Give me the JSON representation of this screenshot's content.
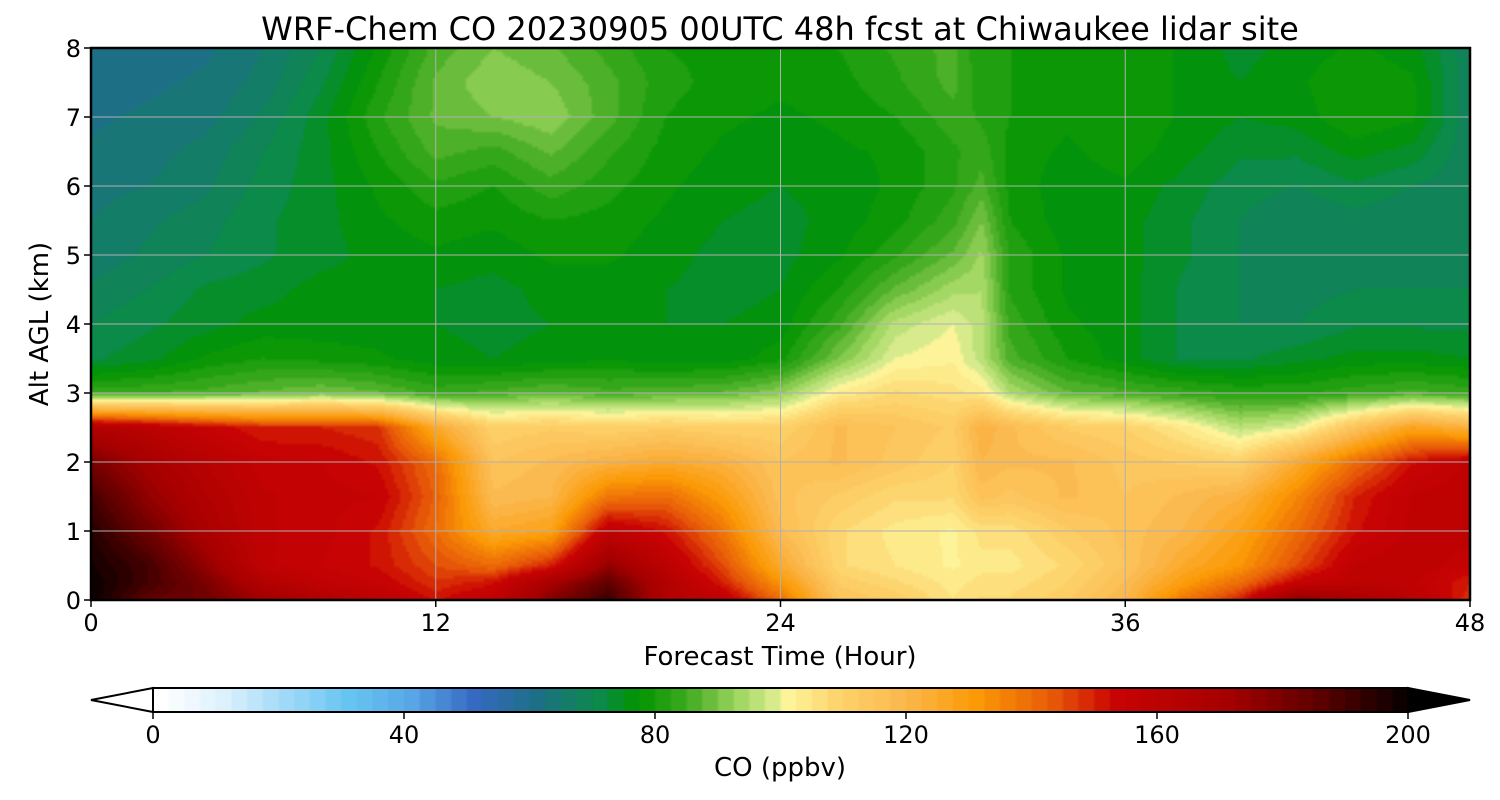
{
  "chart_data": {
    "type": "heatmap",
    "title": "WRF-Chem CO  20230905 00UTC 48h fcst at Chiwaukee lidar site",
    "xlabel": "Forecast Time (Hour)",
    "ylabel": "Alt AGL (km)",
    "xlim": [
      0,
      48
    ],
    "ylim": [
      0,
      8
    ],
    "xticks": [
      "0",
      "12",
      "24",
      "36",
      "48"
    ],
    "yticks": [
      "0",
      "1",
      "2",
      "3",
      "4",
      "5",
      "6",
      "7",
      "8"
    ],
    "grid": true,
    "x_hours": [
      0,
      2,
      4,
      6,
      8,
      10,
      12,
      14,
      16,
      18,
      20,
      22,
      24,
      26,
      28,
      30,
      31,
      32,
      34,
      36,
      38,
      40,
      42,
      44,
      46,
      48
    ],
    "y_km": [
      0,
      0.25,
      0.5,
      1,
      1.5,
      2,
      2.5,
      3,
      3.5,
      4,
      4.5,
      5,
      5.5,
      6,
      6.5,
      7,
      7.5,
      8
    ],
    "values_ppbv": [
      [
        200,
        185,
        182,
        172,
        165,
        160,
        152,
        158,
        178,
        192,
        165,
        158,
        140,
        115,
        112,
        105,
        108,
        108,
        112,
        120,
        138,
        150,
        178,
        168,
        162,
        148
      ],
      [
        200,
        190,
        180,
        165,
        158,
        155,
        148,
        152,
        170,
        185,
        165,
        150,
        132,
        112,
        108,
        104,
        106,
        106,
        110,
        118,
        130,
        140,
        155,
        160,
        158,
        150
      ],
      [
        198,
        190,
        175,
        158,
        155,
        152,
        145,
        140,
        150,
        175,
        160,
        145,
        125,
        108,
        105,
        102,
        104,
        104,
        108,
        115,
        125,
        132,
        145,
        158,
        160,
        155
      ],
      [
        195,
        182,
        168,
        158,
        156,
        152,
        140,
        125,
        128,
        158,
        152,
        138,
        118,
        108,
        104,
        102,
        106,
        106,
        112,
        116,
        120,
        128,
        140,
        152,
        158,
        160
      ],
      [
        190,
        175,
        165,
        158,
        156,
        155,
        142,
        118,
        120,
        138,
        140,
        130,
        116,
        112,
        108,
        108,
        116,
        114,
        118,
        115,
        118,
        122,
        135,
        150,
        158,
        160
      ],
      [
        180,
        170,
        162,
        156,
        155,
        152,
        140,
        115,
        118,
        122,
        125,
        122,
        115,
        118,
        114,
        110,
        120,
        118,
        118,
        114,
        112,
        110,
        125,
        140,
        152,
        158
      ],
      [
        165,
        160,
        155,
        150,
        150,
        148,
        125,
        110,
        112,
        110,
        112,
        110,
        110,
        118,
        115,
        112,
        122,
        118,
        112,
        110,
        104,
        96,
        100,
        115,
        128,
        122
      ],
      [
        84,
        85,
        86,
        88,
        90,
        88,
        84,
        86,
        88,
        86,
        87,
        88,
        92,
        103,
        108,
        106,
        104,
        95,
        88,
        86,
        84,
        82,
        82,
        84,
        86,
        84
      ],
      [
        72,
        74,
        78,
        80,
        79,
        78,
        76,
        75,
        76,
        77,
        76,
        76,
        79,
        90,
        100,
        102,
        96,
        86,
        80,
        76,
        72,
        72,
        74,
        76,
        76,
        75
      ],
      [
        70,
        72,
        74,
        76,
        76,
        76,
        75,
        74,
        75,
        76,
        75,
        75,
        76,
        84,
        96,
        100,
        96,
        84,
        78,
        76,
        72,
        70,
        70,
        72,
        72,
        72
      ],
      [
        68,
        70,
        73,
        74,
        76,
        76,
        75,
        74,
        76,
        76,
        75,
        74,
        75,
        80,
        88,
        94,
        95,
        82,
        77,
        76,
        72,
        70,
        69,
        70,
        70,
        70
      ],
      [
        66,
        68,
        70,
        72,
        74,
        76,
        77,
        76,
        78,
        78,
        76,
        74,
        74,
        77,
        82,
        88,
        93,
        82,
        77,
        76,
        73,
        70,
        68,
        69,
        69,
        69
      ],
      [
        65,
        67,
        69,
        72,
        74,
        77,
        79,
        78,
        80,
        79,
        77,
        75,
        74,
        76,
        79,
        84,
        90,
        80,
        76,
        76,
        73,
        70,
        68,
        69,
        68,
        68
      ],
      [
        64,
        65,
        67,
        71,
        74,
        78,
        82,
        80,
        84,
        81,
        78,
        76,
        75,
        76,
        78,
        82,
        86,
        79,
        76,
        77,
        74,
        71,
        70,
        72,
        70,
        68
      ],
      [
        63,
        64,
        66,
        70,
        74,
        80,
        86,
        84,
        88,
        83,
        79,
        77,
        76,
        77,
        78,
        82,
        84,
        79,
        77,
        79,
        76,
        73,
        73,
        76,
        74,
        68
      ],
      [
        62,
        63,
        64,
        68,
        74,
        82,
        88,
        90,
        92,
        86,
        80,
        78,
        77,
        78,
        80,
        84,
        82,
        80,
        78,
        80,
        77,
        75,
        76,
        80,
        78,
        68
      ],
      [
        61,
        62,
        63,
        66,
        72,
        80,
        88,
        92,
        90,
        86,
        81,
        79,
        78,
        79,
        82,
        86,
        81,
        80,
        79,
        80,
        77,
        75,
        77,
        80,
        78,
        68
      ],
      [
        60,
        61,
        62,
        65,
        70,
        78,
        86,
        90,
        88,
        84,
        80,
        79,
        78,
        80,
        83,
        86,
        80,
        80,
        79,
        80,
        77,
        74,
        76,
        78,
        76,
        68
      ]
    ],
    "colorbar": {
      "label": "CO  (ppbv)",
      "ticks": [
        "0",
        "40",
        "80",
        "120",
        "160",
        "200"
      ],
      "range": [
        0,
        200
      ],
      "extend": "both",
      "stops": [
        {
          "v": 0,
          "c": "#ffffff"
        },
        {
          "v": 10,
          "c": "#dcf1fc"
        },
        {
          "v": 20,
          "c": "#9fd9f7"
        },
        {
          "v": 30,
          "c": "#66c4f2"
        },
        {
          "v": 40,
          "c": "#58a6e6"
        },
        {
          "v": 50,
          "c": "#3569c2"
        },
        {
          "v": 60,
          "c": "#1d6f86"
        },
        {
          "v": 70,
          "c": "#0b8a4a"
        },
        {
          "v": 76,
          "c": "#009400"
        },
        {
          "v": 84,
          "c": "#40aa20"
        },
        {
          "v": 92,
          "c": "#9fd660"
        },
        {
          "v": 97,
          "c": "#cfe98a"
        },
        {
          "v": 100,
          "c": "#fdf49a"
        },
        {
          "v": 108,
          "c": "#fdd36b"
        },
        {
          "v": 118,
          "c": "#fbb94f"
        },
        {
          "v": 130,
          "c": "#fb9a06"
        },
        {
          "v": 142,
          "c": "#e85a08"
        },
        {
          "v": 152,
          "c": "#c90303"
        },
        {
          "v": 170,
          "c": "#a50000"
        },
        {
          "v": 185,
          "c": "#5a0000"
        },
        {
          "v": 200,
          "c": "#000000"
        }
      ]
    }
  }
}
